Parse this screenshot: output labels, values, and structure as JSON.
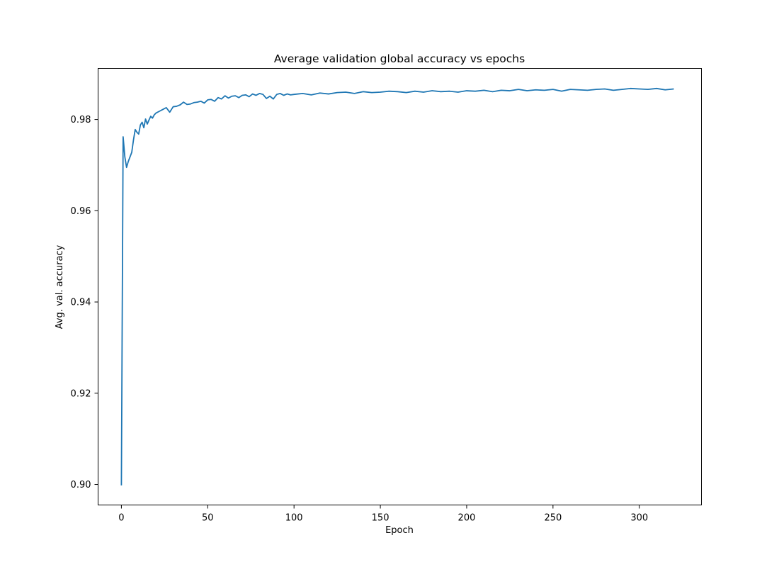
{
  "chart_data": {
    "type": "line",
    "title": "Average validation global accuracy vs epochs",
    "xlabel": "Epoch",
    "ylabel": "Avg. val. accuracy",
    "xlim": [
      -13.5,
      336
    ],
    "ylim": [
      0.8955,
      0.9912
    ],
    "xticks": [
      0,
      50,
      100,
      150,
      200,
      250,
      300
    ],
    "yticks": [
      0.9,
      0.92,
      0.94,
      0.96,
      0.98
    ],
    "yticks_labels": [
      "0.90",
      "0.92",
      "0.94",
      "0.96",
      "0.98"
    ],
    "grid": false,
    "line_color": "#1f77b4",
    "series": [
      {
        "x": [
          0,
          1,
          2,
          3,
          4,
          5,
          6,
          7,
          8,
          9,
          10,
          11,
          12,
          13,
          14,
          15,
          16,
          17,
          18,
          19,
          20,
          22,
          24,
          26,
          28,
          30,
          32,
          34,
          36,
          38,
          40,
          42,
          44,
          46,
          48,
          50,
          52,
          54,
          56,
          58,
          60,
          62,
          64,
          66,
          68,
          70,
          72,
          74,
          76,
          78,
          80,
          82,
          84,
          86,
          88,
          90,
          92,
          94,
          96,
          98,
          100,
          105,
          110,
          115,
          120,
          125,
          130,
          135,
          140,
          145,
          150,
          155,
          160,
          165,
          170,
          175,
          180,
          185,
          190,
          195,
          200,
          205,
          210,
          215,
          220,
          225,
          230,
          235,
          240,
          245,
          250,
          255,
          260,
          265,
          270,
          275,
          280,
          285,
          290,
          295,
          300,
          305,
          310,
          315,
          320
        ],
        "y": [
          0.8998,
          0.9762,
          0.9718,
          0.9695,
          0.9708,
          0.9718,
          0.9728,
          0.9755,
          0.9778,
          0.9772,
          0.9768,
          0.9788,
          0.9794,
          0.9782,
          0.9801,
          0.979,
          0.9799,
          0.9807,
          0.9803,
          0.981,
          0.9814,
          0.9818,
          0.9822,
          0.9826,
          0.9816,
          0.9828,
          0.9829,
          0.9832,
          0.9838,
          0.9833,
          0.9834,
          0.9837,
          0.9838,
          0.984,
          0.9836,
          0.9843,
          0.9844,
          0.984,
          0.9848,
          0.9845,
          0.9852,
          0.9847,
          0.9851,
          0.9852,
          0.9848,
          0.9853,
          0.9854,
          0.985,
          0.9856,
          0.9853,
          0.9857,
          0.9855,
          0.9846,
          0.9851,
          0.9845,
          0.9855,
          0.9857,
          0.9853,
          0.9856,
          0.9854,
          0.9855,
          0.9857,
          0.9854,
          0.9858,
          0.9856,
          0.9859,
          0.986,
          0.9857,
          0.9861,
          0.9859,
          0.986,
          0.9862,
          0.9861,
          0.9859,
          0.9862,
          0.986,
          0.9863,
          0.9861,
          0.9862,
          0.986,
          0.9863,
          0.9862,
          0.9864,
          0.9861,
          0.9864,
          0.9863,
          0.9866,
          0.9863,
          0.9865,
          0.9864,
          0.9866,
          0.9862,
          0.9866,
          0.9865,
          0.9864,
          0.9866,
          0.9867,
          0.9864,
          0.9866,
          0.9868,
          0.9867,
          0.9866,
          0.9868,
          0.9865,
          0.9867
        ]
      }
    ]
  }
}
